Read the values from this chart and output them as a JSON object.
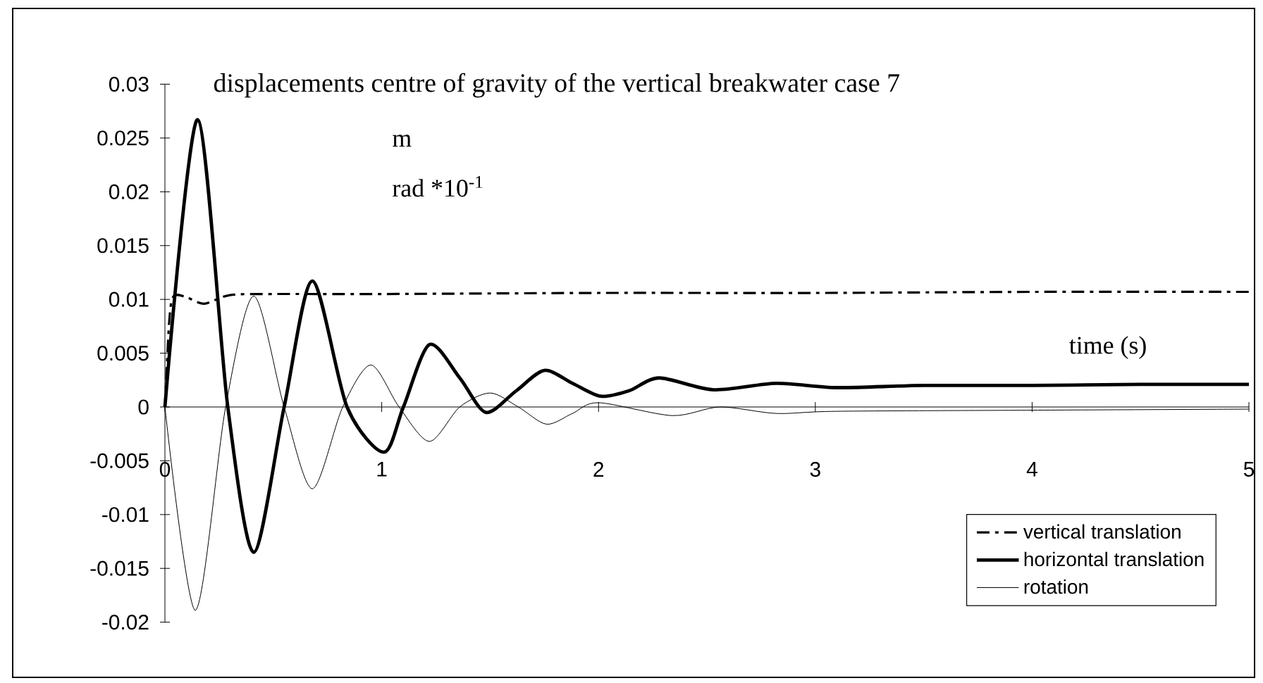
{
  "chart_data": {
    "type": "line",
    "title": "displacements centre of gravity of the vertical breakwater case 7",
    "xlabel": "time (s)",
    "annotations": [
      "m",
      "rad *10$^{-1}$"
    ],
    "xlim": [
      0,
      5
    ],
    "xticks": [
      0,
      1,
      2,
      3,
      4,
      5
    ],
    "ylim": [
      -0.02,
      0.03
    ],
    "yticks": [
      -0.02,
      -0.015,
      -0.01,
      -0.005,
      0,
      0.005,
      0.01,
      0.015,
      0.02,
      0.025,
      0.03
    ],
    "legend": "bottom right",
    "marker": "none",
    "series": [
      {
        "name": "vertical translation",
        "color": "#000000",
        "line_style": "dashdot",
        "x": [
          0,
          0.02,
          0.04,
          0.1,
          0.18,
          0.3,
          0.5,
          1,
          2,
          3,
          4,
          5
        ],
        "values": [
          0,
          0.008,
          0.0103,
          0.0102,
          0.0096,
          0.0104,
          0.0105,
          0.0105,
          0.0106,
          0.0106,
          0.0107,
          0.0107
        ]
      },
      {
        "name": "horizontal translation",
        "color": "#000000",
        "line_style": "solid",
        "x": [
          0,
          0.15,
          0.29,
          0.41,
          0.55,
          0.68,
          0.84,
          1.01,
          1.1,
          1.22,
          1.36,
          1.48,
          1.62,
          1.75,
          1.88,
          2.01,
          2.14,
          2.28,
          2.53,
          2.82,
          3.1,
          3.5,
          4,
          4.5,
          5
        ],
        "values": [
          0,
          0.0267,
          0,
          -0.0135,
          0,
          0.0117,
          0,
          -0.0042,
          0,
          0.0058,
          0.0027,
          -0.0005,
          0.0015,
          0.0034,
          0.0022,
          0.001,
          0.0015,
          0.0027,
          0.0016,
          0.0022,
          0.0018,
          0.002,
          0.002,
          0.0021,
          0.0021
        ]
      },
      {
        "name": "rotation",
        "color": "#000000",
        "line_style": "solid",
        "x": [
          0,
          0.14,
          0.28,
          0.41,
          0.55,
          0.68,
          0.82,
          0.95,
          1.08,
          1.22,
          1.36,
          1.5,
          1.63,
          1.76,
          1.88,
          2.0,
          2.34,
          2.56,
          2.82,
          3.1,
          4,
          5
        ],
        "values": [
          0,
          -0.0189,
          0,
          0.0103,
          0,
          -0.0076,
          0,
          0.0039,
          0,
          -0.0032,
          0,
          0.0013,
          0,
          -0.0016,
          -0.0006,
          0.0004,
          -0.0008,
          0.0,
          -0.0006,
          -0.0004,
          -0.0003,
          -0.0002
        ]
      }
    ]
  }
}
